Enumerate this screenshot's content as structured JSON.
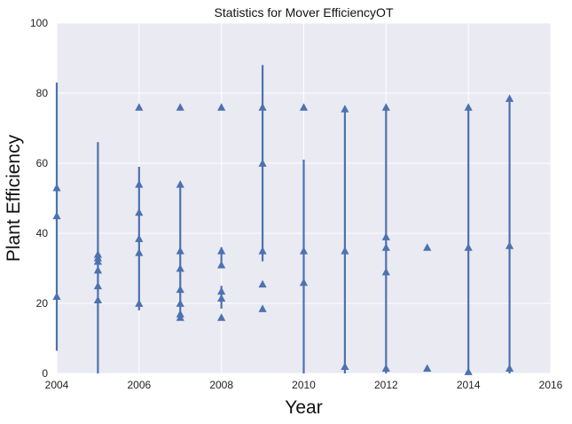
{
  "chart_data": {
    "type": "scatter",
    "title": "Statistics for Mover EfficiencyOT",
    "xlabel": "Year",
    "ylabel": "Plant Efficiency",
    "xlim": [
      2004,
      2016
    ],
    "ylim": [
      0,
      100
    ],
    "xticks": [
      2004,
      2006,
      2008,
      2010,
      2012,
      2014,
      2016
    ],
    "yticks": [
      0,
      20,
      40,
      60,
      80,
      100
    ],
    "grid": true,
    "colors": {
      "background": "#eaeaf2",
      "grid": "#ffffff",
      "series": "#4c72b0"
    },
    "error_bars": [
      {
        "x": 2004,
        "low": 6.5,
        "high": 83
      },
      {
        "x": 2005,
        "low": 0,
        "high": 66
      },
      {
        "x": 2006,
        "low": 18,
        "high": 59
      },
      {
        "x": 2007,
        "low": 15.5,
        "high": 54
      },
      {
        "x": 2008,
        "low": 18.5,
        "high": 25
      },
      {
        "x": 2008,
        "low": 30,
        "high": 36
      },
      {
        "x": 2009,
        "low": 32,
        "high": 88
      },
      {
        "x": 2010,
        "low": 0,
        "high": 61
      },
      {
        "x": 2011,
        "low": 0,
        "high": 76
      },
      {
        "x": 2012,
        "low": 0,
        "high": 76
      },
      {
        "x": 2014,
        "low": 0,
        "high": 76
      },
      {
        "x": 2015,
        "low": 0,
        "high": 78
      }
    ],
    "points": [
      {
        "x": 2004,
        "y": 53
      },
      {
        "x": 2004,
        "y": 45
      },
      {
        "x": 2004,
        "y": 22
      },
      {
        "x": 2005,
        "y": 34
      },
      {
        "x": 2005,
        "y": 33
      },
      {
        "x": 2005,
        "y": 32
      },
      {
        "x": 2005,
        "y": 29.5
      },
      {
        "x": 2005,
        "y": 25
      },
      {
        "x": 2005,
        "y": 21
      },
      {
        "x": 2006,
        "y": 76
      },
      {
        "x": 2006,
        "y": 54
      },
      {
        "x": 2006,
        "y": 46
      },
      {
        "x": 2006,
        "y": 38.5
      },
      {
        "x": 2006,
        "y": 34.5
      },
      {
        "x": 2006,
        "y": 20
      },
      {
        "x": 2007,
        "y": 76
      },
      {
        "x": 2007,
        "y": 54
      },
      {
        "x": 2007,
        "y": 35
      },
      {
        "x": 2007,
        "y": 30
      },
      {
        "x": 2007,
        "y": 24
      },
      {
        "x": 2007,
        "y": 20
      },
      {
        "x": 2007,
        "y": 17
      },
      {
        "x": 2007,
        "y": 16
      },
      {
        "x": 2008,
        "y": 76
      },
      {
        "x": 2008,
        "y": 35
      },
      {
        "x": 2008,
        "y": 31
      },
      {
        "x": 2008,
        "y": 23.5
      },
      {
        "x": 2008,
        "y": 21.5
      },
      {
        "x": 2008,
        "y": 16
      },
      {
        "x": 2009,
        "y": 76
      },
      {
        "x": 2009,
        "y": 60
      },
      {
        "x": 2009,
        "y": 35
      },
      {
        "x": 2009,
        "y": 25.5
      },
      {
        "x": 2009,
        "y": 18.5
      },
      {
        "x": 2010,
        "y": 76
      },
      {
        "x": 2010,
        "y": 35
      },
      {
        "x": 2010,
        "y": 26
      },
      {
        "x": 2011,
        "y": 75.5
      },
      {
        "x": 2011,
        "y": 35
      },
      {
        "x": 2011,
        "y": 2
      },
      {
        "x": 2012,
        "y": 76
      },
      {
        "x": 2012,
        "y": 39
      },
      {
        "x": 2012,
        "y": 36
      },
      {
        "x": 2012,
        "y": 29
      },
      {
        "x": 2012,
        "y": 1.5
      },
      {
        "x": 2013,
        "y": 36
      },
      {
        "x": 2013,
        "y": 1.5
      },
      {
        "x": 2014,
        "y": 76
      },
      {
        "x": 2014,
        "y": 36
      },
      {
        "x": 2014,
        "y": 0.5
      },
      {
        "x": 2015,
        "y": 78.5
      },
      {
        "x": 2015,
        "y": 36.5
      },
      {
        "x": 2015,
        "y": 1.5
      }
    ]
  }
}
